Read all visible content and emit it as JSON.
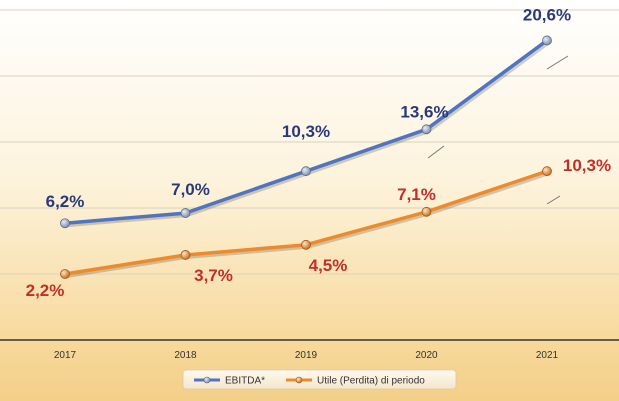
{
  "chart_data": {
    "type": "line",
    "categories": [
      "2017",
      "2018",
      "2019",
      "2020",
      "2021"
    ],
    "ylim": [
      -3,
      23
    ],
    "grid": true,
    "legend_position": "bottom",
    "series": [
      {
        "name": "EBITDA*",
        "color": "#4f74c4",
        "label_color": "#2a3a78",
        "values": [
          6.2,
          7.0,
          10.3,
          13.6,
          20.6
        ],
        "labels": [
          "6,2%",
          "7,0%",
          "10,3%",
          "13,6%",
          "20,6%"
        ]
      },
      {
        "name": "Utile (Perdita) di periodo",
        "color": "#ef8a2b",
        "label_color": "#c0302a",
        "values": [
          2.2,
          3.7,
          4.5,
          7.1,
          10.3
        ],
        "labels": [
          "2,2%",
          "3,7%",
          "4,5%",
          "7,1%",
          "10,3%"
        ]
      }
    ]
  }
}
